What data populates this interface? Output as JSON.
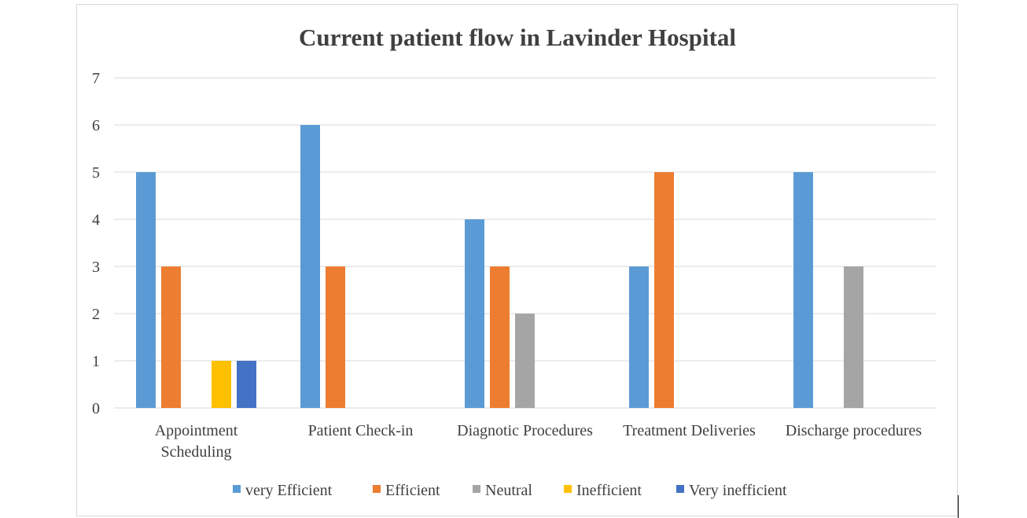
{
  "chart_data": {
    "type": "bar",
    "title": "Current patient flow in Lavinder Hospital",
    "categories": [
      [
        "Appointment",
        "Scheduling"
      ],
      [
        "Patient Check-in"
      ],
      [
        "Diagnotic Procedures"
      ],
      [
        "Treatment Deliveries"
      ],
      [
        "Discharge procedures"
      ]
    ],
    "series": [
      {
        "name": "very Efficient",
        "color": "#5b9bd5",
        "values": [
          5,
          6,
          4,
          3,
          5
        ]
      },
      {
        "name": "Efficient",
        "color": "#ed7d31",
        "values": [
          3,
          3,
          3,
          5,
          0
        ]
      },
      {
        "name": "Neutral",
        "color": "#a5a5a5",
        "values": [
          0,
          0,
          2,
          0,
          3
        ]
      },
      {
        "name": "Inefficient",
        "color": "#ffc000",
        "values": [
          1,
          0,
          0,
          0,
          0
        ]
      },
      {
        "name": "Very inefficient",
        "color": "#4472c4",
        "values": [
          1,
          0,
          0,
          0,
          0
        ]
      }
    ],
    "ylim": [
      0,
      7
    ],
    "yticks": [
      0,
      1,
      2,
      3,
      4,
      5,
      6,
      7
    ],
    "grid": true,
    "legend": "bottom"
  }
}
